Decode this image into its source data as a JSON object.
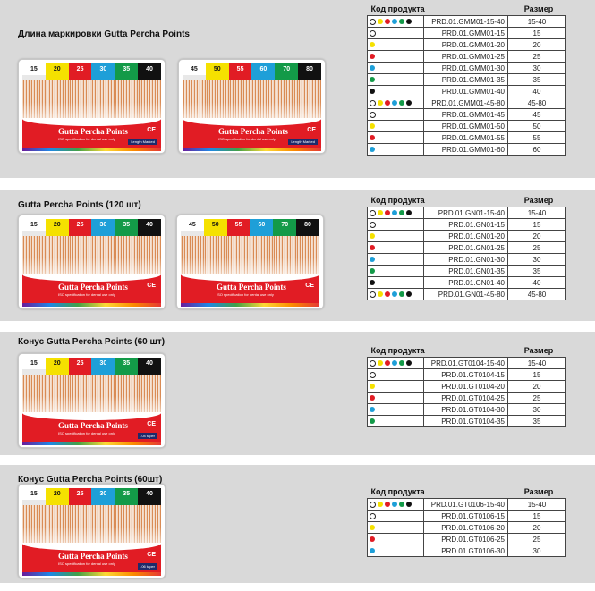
{
  "headers": {
    "code": "Код продукта",
    "size": "Размер"
  },
  "colors": {
    "15": "#ffffff",
    "20": "#f5e100",
    "25": "#e11c24",
    "30": "#1e9fd8",
    "35": "#139a48",
    "40": "#111111",
    "45": "#ffffff",
    "50": "#f5e100",
    "55": "#e11c24",
    "60": "#1e9fd8",
    "70": "#139a48",
    "80": "#111111"
  },
  "product": {
    "name": "Gutta Percha Points",
    "desc": "ISO specification for dental use only",
    "ce": "CE",
    "badge1": "Length Marked",
    "badge2": ".04 taper",
    "badge3": ".06 taper"
  },
  "sections": [
    {
      "title": "Длина маркировки Gutta Percha Points",
      "boxes": [
        [
          "15",
          "20",
          "25",
          "30",
          "35",
          "40"
        ],
        [
          "45",
          "50",
          "55",
          "60",
          "70",
          "80"
        ]
      ],
      "rows": [
        {
          "dots": [
            "15",
            "20",
            "25",
            "30",
            "35",
            "40"
          ],
          "code": "PRD.01.GMM01-15-40",
          "size": "15-40"
        },
        {
          "dots": [
            "15"
          ],
          "code": "PRD.01.GMM01-15",
          "size": "15"
        },
        {
          "dots": [
            "20"
          ],
          "code": "PRD.01.GMM01-20",
          "size": "20"
        },
        {
          "dots": [
            "25"
          ],
          "code": "PRD.01.GMM01-25",
          "size": "25"
        },
        {
          "dots": [
            "30"
          ],
          "code": "PRD.01.GMM01-30",
          "size": "30"
        },
        {
          "dots": [
            "35"
          ],
          "code": "PRD.01.GMM01-35",
          "size": "35"
        },
        {
          "dots": [
            "40"
          ],
          "code": "PRD.01.GMM01-40",
          "size": "40"
        },
        {
          "dots": [
            "15",
            "20",
            "25",
            "30",
            "35",
            "40"
          ],
          "code": "PRD.01.GMM01-45-80",
          "size": "45-80"
        },
        {
          "dots": [
            "45"
          ],
          "code": "PRD.01.GMM01-45",
          "size": "45"
        },
        {
          "dots": [
            "50"
          ],
          "code": "PRD.01.GMM01-50",
          "size": "50"
        },
        {
          "dots": [
            "55"
          ],
          "code": "PRD.01.GMM01-55",
          "size": "55"
        },
        {
          "dots": [
            "60"
          ],
          "code": "PRD.01.GMM01-60",
          "size": "60"
        }
      ]
    },
    {
      "title": "Gutta Percha Points (120 шт)",
      "boxes": [
        [
          "15",
          "20",
          "25",
          "30",
          "35",
          "40"
        ],
        [
          "45",
          "50",
          "55",
          "60",
          "70",
          "80"
        ]
      ],
      "rows": [
        {
          "dots": [
            "15",
            "20",
            "25",
            "30",
            "35",
            "40"
          ],
          "code": "PRD.01.GN01-15-40",
          "size": "15-40"
        },
        {
          "dots": [
            "15"
          ],
          "code": "PRD.01.GN01-15",
          "size": "15"
        },
        {
          "dots": [
            "20"
          ],
          "code": "PRD.01.GN01-20",
          "size": "20"
        },
        {
          "dots": [
            "25"
          ],
          "code": "PRD.01.GN01-25",
          "size": "25"
        },
        {
          "dots": [
            "30"
          ],
          "code": "PRD.01.GN01-30",
          "size": "30"
        },
        {
          "dots": [
            "35"
          ],
          "code": "PRD.01.GN01-35",
          "size": "35"
        },
        {
          "dots": [
            "40"
          ],
          "code": "PRD.01.GN01-40",
          "size": "40"
        },
        {
          "dots": [
            "15",
            "20",
            "25",
            "30",
            "35",
            "40"
          ],
          "code": "PRD.01.GN01-45-80",
          "size": "45-80"
        }
      ]
    },
    {
      "title": "Конус Gutta Percha Points (60 шт)",
      "boxes": [
        [
          "15",
          "20",
          "25",
          "30",
          "35",
          "40"
        ]
      ],
      "rows": [
        {
          "dots": [
            "15",
            "20",
            "25",
            "30",
            "35",
            "40"
          ],
          "code": "PRD.01.GT0104-15-40",
          "size": "15-40"
        },
        {
          "dots": [
            "15"
          ],
          "code": "PRD.01.GT0104-15",
          "size": "15"
        },
        {
          "dots": [
            "20"
          ],
          "code": "PRD.01.GT0104-20",
          "size": "20"
        },
        {
          "dots": [
            "25"
          ],
          "code": "PRD.01.GT0104-25",
          "size": "25"
        },
        {
          "dots": [
            "30"
          ],
          "code": "PRD.01.GT0104-30",
          "size": "30"
        },
        {
          "dots": [
            "35"
          ],
          "code": "PRD.01.GT0104-35",
          "size": "35"
        }
      ]
    },
    {
      "title": "Конус Gutta Percha Points (60шт)",
      "boxes": [
        [
          "15",
          "20",
          "25",
          "30",
          "35",
          "40"
        ]
      ],
      "rows": [
        {
          "dots": [
            "15",
            "20",
            "25",
            "30",
            "35",
            "40"
          ],
          "code": "PRD.01.GT0106-15-40",
          "size": "15-40"
        },
        {
          "dots": [
            "15"
          ],
          "code": "PRD.01.GT0106-15",
          "size": "15"
        },
        {
          "dots": [
            "20"
          ],
          "code": "PRD.01.GT0106-20",
          "size": "20"
        },
        {
          "dots": [
            "25"
          ],
          "code": "PRD.01.GT0106-25",
          "size": "25"
        },
        {
          "dots": [
            "30"
          ],
          "code": "PRD.01.GT0106-30",
          "size": "30"
        }
      ]
    }
  ]
}
